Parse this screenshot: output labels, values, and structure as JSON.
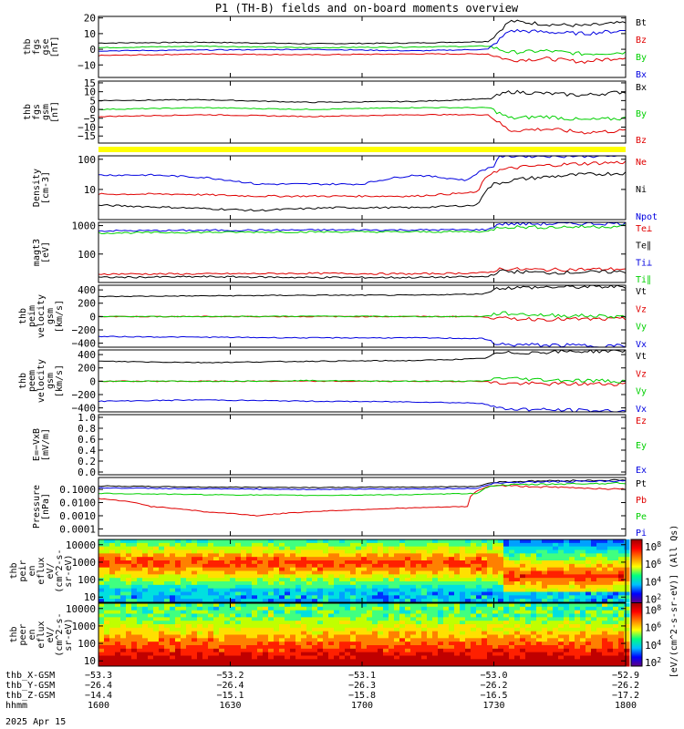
{
  "title": "P1 (TH-B) fields and on-board moments overview",
  "date_label": "2025 Apr 15",
  "colors": {
    "black": "#000000",
    "red": "#e00000",
    "green": "#00d000",
    "blue": "#0000e0",
    "yellow": "#ffff00"
  },
  "chart_data": [
    {
      "type": "line",
      "title": "",
      "ylabel": [
        "thb",
        "fgs",
        "gse",
        "[nT]"
      ],
      "ylim": [
        -18,
        21
      ],
      "yticks": [
        "20",
        "10",
        "0",
        "−10"
      ],
      "ytick_values": [
        20,
        10,
        0,
        -10
      ],
      "series": [
        {
          "name": "Bt",
          "color": "#000000",
          "x": [
            0,
            0.2,
            0.4,
            0.6,
            0.74,
            0.78,
            0.85,
            0.92,
            1
          ],
          "y": [
            4,
            4.5,
            3.5,
            4,
            5,
            18,
            16,
            15,
            17
          ]
        },
        {
          "name": "Bz",
          "color": "#e00000",
          "x": [
            0,
            0.2,
            0.4,
            0.6,
            0.74,
            0.78,
            0.85,
            0.92,
            1
          ],
          "y": [
            -4,
            -3,
            -3.5,
            -3,
            -3,
            -7,
            -6,
            -8,
            -5
          ]
        },
        {
          "name": "By",
          "color": "#00d000",
          "x": [
            0,
            0.2,
            0.4,
            0.6,
            0.74,
            0.78,
            0.85,
            0.92,
            1
          ],
          "y": [
            1,
            2,
            1,
            1.5,
            2,
            -2,
            -1,
            -3,
            -2
          ]
        },
        {
          "name": "Bx",
          "color": "#0000e0",
          "x": [
            0,
            0.2,
            0.4,
            0.6,
            0.74,
            0.78,
            0.85,
            0.92,
            1
          ],
          "y": [
            -1,
            -0.5,
            0,
            -1,
            0,
            12,
            11,
            10,
            12
          ]
        }
      ]
    },
    {
      "type": "line",
      "title": "",
      "ylabel": [
        "thb",
        "fgs",
        "gsm",
        "[nT]"
      ],
      "ylim": [
        -19,
        16
      ],
      "yticks": [
        "15",
        "10",
        "5",
        "0",
        "−5",
        "−10",
        "−15"
      ],
      "ytick_values": [
        15,
        10,
        5,
        0,
        -5,
        -10,
        -15
      ],
      "series": [
        {
          "name": "Bx",
          "color": "#000000",
          "x": [
            0,
            0.2,
            0.4,
            0.6,
            0.74,
            0.78,
            0.85,
            0.92,
            1
          ],
          "y": [
            5,
            5.5,
            4,
            4.5,
            6,
            10,
            9,
            8,
            10
          ]
        },
        {
          "name": "By",
          "color": "#00d000",
          "x": [
            0,
            0.2,
            0.4,
            0.6,
            0.74,
            0.78,
            0.85,
            0.92,
            1
          ],
          "y": [
            0,
            1,
            0,
            1,
            1,
            -5,
            -4,
            -6,
            -5
          ]
        },
        {
          "name": "Bz",
          "color": "#e00000",
          "x": [
            0,
            0.2,
            0.4,
            0.6,
            0.74,
            0.78,
            0.85,
            0.92,
            1
          ],
          "y": [
            -4,
            -3,
            -4,
            -3,
            -3,
            -12,
            -11,
            -13,
            -12
          ]
        }
      ]
    },
    {
      "type": "line",
      "title": "",
      "ylabel": [
        "Density",
        "[cm-3]"
      ],
      "log": true,
      "ylim": [
        1,
        130
      ],
      "yticks": [
        "100",
        "10"
      ],
      "ytick_values": [
        100,
        10
      ],
      "series": [
        {
          "name": "Ne",
          "color": "#e00000",
          "x": [
            0,
            0.15,
            0.3,
            0.45,
            0.6,
            0.72,
            0.75,
            0.8,
            0.9,
            1
          ],
          "y": [
            7,
            7,
            6,
            6,
            6,
            8,
            40,
            55,
            70,
            80
          ]
        },
        {
          "name": "Ni",
          "color": "#000000",
          "x": [
            0,
            0.15,
            0.3,
            0.45,
            0.6,
            0.72,
            0.75,
            0.8,
            0.9,
            1
          ],
          "y": [
            3,
            2.5,
            2,
            2.5,
            2.5,
            3,
            15,
            22,
            30,
            35
          ]
        },
        {
          "name": "Npot",
          "color": "#0000e0",
          "x": [
            0,
            0.1,
            0.2,
            0.3,
            0.4,
            0.5,
            0.6,
            0.7,
            0.75,
            0.76
          ],
          "y": [
            30,
            30,
            25,
            15,
            15,
            15,
            30,
            20,
            60,
            130
          ]
        }
      ]
    },
    {
      "type": "line",
      "title": "",
      "ylabel": [
        "magt3",
        "[eV]"
      ],
      "log": true,
      "ylim": [
        10,
        1300
      ],
      "yticks": [
        "1000",
        "100"
      ],
      "ytick_values": [
        1000,
        100
      ],
      "series": [
        {
          "name": "Te⊥",
          "color": "#e00000",
          "x": [
            0,
            0.2,
            0.4,
            0.6,
            0.74,
            0.76,
            0.85,
            1
          ],
          "y": [
            20,
            20,
            21,
            20,
            22,
            30,
            28,
            30
          ]
        },
        {
          "name": "Te∥",
          "color": "#000000",
          "x": [
            0,
            0.2,
            0.4,
            0.6,
            0.74,
            0.76,
            0.85,
            1
          ],
          "y": [
            15,
            16,
            15,
            15,
            16,
            25,
            22,
            24
          ]
        },
        {
          "name": "Ti⊥",
          "color": "#0000e0",
          "x": [
            0,
            0.2,
            0.4,
            0.6,
            0.74,
            0.76,
            0.85,
            1
          ],
          "y": [
            650,
            680,
            700,
            700,
            720,
            1150,
            1150,
            1200
          ]
        },
        {
          "name": "Ti∥",
          "color": "#00d000",
          "x": [
            0,
            0.2,
            0.4,
            0.6,
            0.74,
            0.76,
            0.85,
            1
          ],
          "y": [
            550,
            580,
            600,
            600,
            620,
            900,
            880,
            950
          ]
        }
      ]
    },
    {
      "type": "line",
      "title": "",
      "ylabel": [
        "thb",
        "peim",
        "velocity",
        "gsm",
        "[km/s]"
      ],
      "ylim": [
        -460,
        470
      ],
      "yticks": [
        "400",
        "200",
        "0",
        "−200",
        "−400"
      ],
      "ytick_values": [
        400,
        200,
        0,
        -200,
        -400
      ],
      "series": [
        {
          "name": "Vt",
          "color": "#000000",
          "x": [
            0,
            0.2,
            0.4,
            0.6,
            0.73,
            0.76,
            0.85,
            1
          ],
          "y": [
            300,
            310,
            320,
            320,
            340,
            430,
            440,
            450
          ]
        },
        {
          "name": "Vz",
          "color": "#e00000",
          "x": [
            0,
            0.2,
            0.4,
            0.6,
            0.73,
            0.76,
            0.85,
            1
          ],
          "y": [
            0,
            0,
            0,
            0,
            0,
            -30,
            -40,
            -40
          ]
        },
        {
          "name": "Vy",
          "color": "#00d000",
          "x": [
            0,
            0.2,
            0.4,
            0.6,
            0.73,
            0.76,
            0.85,
            1
          ],
          "y": [
            0,
            0,
            5,
            0,
            0,
            50,
            20,
            0
          ]
        },
        {
          "name": "Vx",
          "color": "#0000e0",
          "x": [
            0,
            0.2,
            0.4,
            0.6,
            0.73,
            0.76,
            0.85,
            1
          ],
          "y": [
            -300,
            -310,
            -320,
            -320,
            -330,
            -420,
            -430,
            -440
          ]
        }
      ]
    },
    {
      "type": "line",
      "title": "",
      "ylabel": [
        "thb",
        "peem",
        "velocity",
        "gsm",
        "[km/s]"
      ],
      "ylim": [
        -460,
        470
      ],
      "yticks": [
        "400",
        "200",
        "0",
        "−200",
        "−400"
      ],
      "ytick_values": [
        400,
        200,
        0,
        -200,
        -400
      ],
      "series": [
        {
          "name": "Vt",
          "color": "#000000",
          "x": [
            0,
            0.2,
            0.4,
            0.6,
            0.73,
            0.76,
            0.85,
            1
          ],
          "y": [
            300,
            280,
            300,
            310,
            340,
            420,
            440,
            460
          ]
        },
        {
          "name": "Vz",
          "color": "#e00000",
          "x": [
            0,
            0.2,
            0.4,
            0.6,
            0.73,
            0.76,
            0.85,
            1
          ],
          "y": [
            0,
            0,
            0,
            0,
            0,
            -30,
            -40,
            -40
          ]
        },
        {
          "name": "Vy",
          "color": "#00d000",
          "x": [
            0,
            0.2,
            0.4,
            0.6,
            0.73,
            0.76,
            0.85,
            1
          ],
          "y": [
            0,
            0,
            10,
            0,
            0,
            50,
            20,
            0
          ]
        },
        {
          "name": "Vx",
          "color": "#0000e0",
          "x": [
            0,
            0.2,
            0.4,
            0.6,
            0.73,
            0.76,
            0.85,
            1
          ],
          "y": [
            -300,
            -280,
            -300,
            -310,
            -330,
            -410,
            -430,
            -450
          ]
        }
      ]
    },
    {
      "type": "line",
      "title": "",
      "ylabel": [
        "E=−VxB",
        "[mV/m]"
      ],
      "ylim": [
        -0.05,
        1.05
      ],
      "yticks": [
        "1.0",
        "0.8",
        "0.6",
        "0.4",
        "0.2",
        "0.0"
      ],
      "ytick_values": [
        1,
        0.8,
        0.6,
        0.4,
        0.2,
        0
      ],
      "legend": [
        {
          "name": "Ez",
          "color": "#e00000"
        },
        {
          "name": "Ey",
          "color": "#00d000"
        },
        {
          "name": "Ex",
          "color": "#0000e0"
        }
      ],
      "series": []
    },
    {
      "type": "line",
      "title": "",
      "ylabel": [
        "Pressure",
        "[nPa]"
      ],
      "log": true,
      "ylim": [
        3e-05,
        0.8
      ],
      "yticks": [
        "0.1000",
        "0.0100",
        "0.0010",
        "0.0001"
      ],
      "ytick_values": [
        0.1,
        0.01,
        0.001,
        0.0001
      ],
      "series": [
        {
          "name": "Pt",
          "color": "#000000",
          "x": [
            0,
            0.2,
            0.4,
            0.6,
            0.72,
            0.75,
            0.85,
            1
          ],
          "y": [
            0.18,
            0.15,
            0.14,
            0.15,
            0.17,
            0.35,
            0.45,
            0.5
          ]
        },
        {
          "name": "Pb",
          "color": "#e00000",
          "x": [
            0,
            0.1,
            0.2,
            0.3,
            0.4,
            0.5,
            0.6,
            0.7,
            0.75,
            0.85,
            1
          ],
          "y": [
            0.02,
            0.005,
            0.002,
            0.001,
            0.002,
            0.003,
            0.004,
            0.005,
            0.2,
            0.15,
            0.1
          ]
        },
        {
          "name": "Pe",
          "color": "#00d000",
          "x": [
            0,
            0.2,
            0.4,
            0.6,
            0.72,
            0.75,
            0.85,
            1
          ],
          "y": [
            0.05,
            0.04,
            0.035,
            0.04,
            0.05,
            0.2,
            0.25,
            0.3
          ]
        },
        {
          "name": "Pi",
          "color": "#0000e0",
          "x": [
            0,
            0.2,
            0.4,
            0.6,
            0.72,
            0.75,
            0.85,
            1
          ],
          "y": [
            0.13,
            0.11,
            0.1,
            0.11,
            0.12,
            0.3,
            0.38,
            0.42
          ]
        }
      ]
    },
    {
      "type": "heatmap",
      "title": "",
      "ylabel": [
        "thb",
        "peir",
        "en",
        "eflux",
        "eV/",
        "(cm^2-s-",
        "sr-eV)"
      ],
      "log": true,
      "ylim": [
        5,
        20000
      ],
      "yticks": [
        "10000",
        "1000",
        "100",
        "10"
      ],
      "ytick_values": [
        10000,
        1000,
        100,
        10
      ]
    },
    {
      "type": "heatmap",
      "title": "",
      "ylabel": [
        "thb",
        "peer",
        "en",
        "eflux",
        "eV/",
        "(cm^2-s-",
        "sr-eV)"
      ],
      "log": true,
      "ylim": [
        5,
        20000
      ],
      "yticks": [
        "10000",
        "1000",
        "100",
        "10"
      ],
      "ytick_values": [
        10000,
        1000,
        100,
        10
      ]
    }
  ],
  "colorbar": {
    "label": "[eV/(cm^2-s-sr-eV)] (All Qs)",
    "top_ticks": [
      "8",
      "6",
      "4",
      "2"
    ],
    "bottom_ticks": [
      "8",
      "6",
      "4",
      "2"
    ],
    "tick_base": "10"
  },
  "ephemeris": [
    {
      "label": "thb_X-GSM",
      "values": [
        "−53.3",
        "−53.2",
        "−53.1",
        "−53.0",
        "−52.9"
      ]
    },
    {
      "label": "thb_Y-GSM",
      "values": [
        "−26.4",
        "−26.4",
        "−26.3",
        "−26.2",
        "−26.2"
      ]
    },
    {
      "label": "thb_Z-GSM",
      "values": [
        "−14.4",
        "−15.1",
        "−15.8",
        "−16.5",
        "−17.2"
      ]
    },
    {
      "label": "hhmm",
      "values": [
        "1600",
        "1630",
        "1700",
        "1730",
        "1800"
      ]
    }
  ]
}
